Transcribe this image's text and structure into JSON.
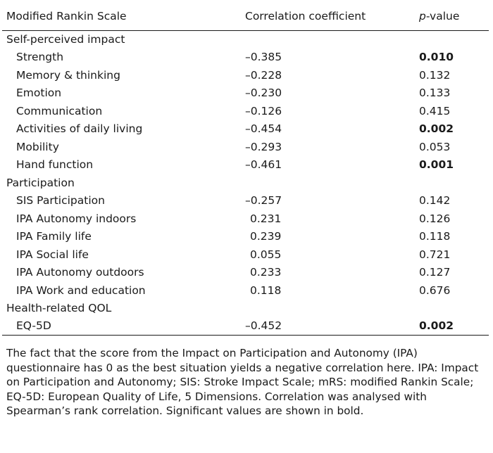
{
  "table": {
    "headers": {
      "scale": "Modified Rankin Scale",
      "coef": "Correlation coefficient",
      "p_prefix": "p",
      "p_suffix": "-value"
    },
    "sections": [
      {
        "title": "Self-perceived impact",
        "rows": [
          {
            "label": "Strength",
            "coef": "–0.385",
            "p": "0.010",
            "bold": true
          },
          {
            "label": "Memory & thinking",
            "coef": "–0.228",
            "p": "0.132",
            "bold": false
          },
          {
            "label": "Emotion",
            "coef": "–0.230",
            "p": "0.133",
            "bold": false
          },
          {
            "label": "Communication",
            "coef": "–0.126",
            "p": "0.415",
            "bold": false
          },
          {
            "label": "Activities of daily living",
            "coef": "–0.454",
            "p": "0.002",
            "bold": true
          },
          {
            "label": "Mobility",
            "coef": "–0.293",
            "p": "0.053",
            "bold": false
          },
          {
            "label": "Hand function",
            "coef": "–0.461",
            "p": "0.001",
            "bold": true
          }
        ]
      },
      {
        "title": "Participation",
        "rows": [
          {
            "label": "SIS Participation",
            "coef": "–0.257",
            "p": "0.142",
            "bold": false
          },
          {
            "label": "IPA Autonomy indoors",
            "coef": "0.231",
            "p": "0.126",
            "bold": false
          },
          {
            "label": "IPA Family life",
            "coef": "0.239",
            "p": "0.118",
            "bold": false
          },
          {
            "label": "IPA Social life",
            "coef": "0.055",
            "p": "0.721",
            "bold": false
          },
          {
            "label": "IPA Autonomy outdoors",
            "coef": "0.233",
            "p": "0.127",
            "bold": false
          },
          {
            "label": "IPA Work and education",
            "coef": "0.118",
            "p": "0.676",
            "bold": false
          }
        ]
      },
      {
        "title": "Health-related QOL",
        "rows": [
          {
            "label": "EQ-5D",
            "coef": "–0.452",
            "p": "0.002",
            "bold": true
          }
        ]
      }
    ]
  },
  "footnote": "The fact that the score from the Impact on Participation and Autonomy (IPA) questionnaire has 0 as the best situation yields a negative correlation here. IPA: Impact on Participation and Autonomy; SIS: Stroke Impact Scale; mRS: modified Rankin Scale; EQ-5D: European Quality of Life, 5 Dimensions. Correlation was analysed with Spearman’s rank correlation. Significant values are shown in bold."
}
